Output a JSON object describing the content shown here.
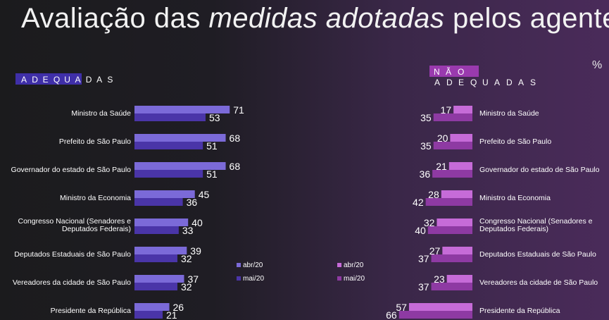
{
  "title": {
    "part1": "Avaliação das ",
    "part2": "medidas adotadas",
    "part3": " pelos agentes"
  },
  "headers": {
    "adequadas": "ADEQUADAS",
    "nao": "NÃO",
    "adequadas_right": "ADEQUADAS"
  },
  "unit": "%",
  "colors": {
    "adeq_abr": "#7b6ad8",
    "adeq_mai": "#4a35a8",
    "nao_abr": "#c66bd8",
    "nao_mai": "#8e3aa3",
    "adeq_header_bg": "#3f2fa8",
    "nao_header_bg": "#9a3aae"
  },
  "chart_data": [
    {
      "type": "bar",
      "title": "ADEQUADAS",
      "categories": [
        "Ministro da Saúde",
        "Prefeito de São Paulo",
        "Governador do estado de São Paulo",
        "Ministro da Economia",
        "Congresso Nacional (Senadores e Deputados Federais)",
        "Deputados Estaduais de São Paulo",
        "Vereadores da cidade de São Paulo",
        "Presidente da República"
      ],
      "series": [
        {
          "name": "abr/20",
          "values": [
            71,
            68,
            68,
            45,
            40,
            39,
            37,
            26
          ]
        },
        {
          "name": "mai/20",
          "values": [
            53,
            51,
            51,
            36,
            33,
            32,
            32,
            21
          ]
        }
      ]
    },
    {
      "type": "bar",
      "title": "NÃO ADEQUADAS",
      "categories": [
        "Ministro da Saúde",
        "Prefeito de São Paulo",
        "Governador do estado de São Paulo",
        "Ministro da Economia",
        "Congresso Nacional (Senadores e Deputados Federais)",
        "Deputados Estaduais de São Paulo",
        "Vereadores da cidade de São Paulo",
        "Presidente da República"
      ],
      "series": [
        {
          "name": "abr/20",
          "values": [
            17,
            20,
            21,
            28,
            32,
            27,
            23,
            57
          ]
        },
        {
          "name": "mai/20",
          "values": [
            35,
            35,
            36,
            42,
            40,
            37,
            37,
            66
          ]
        }
      ]
    }
  ]
}
